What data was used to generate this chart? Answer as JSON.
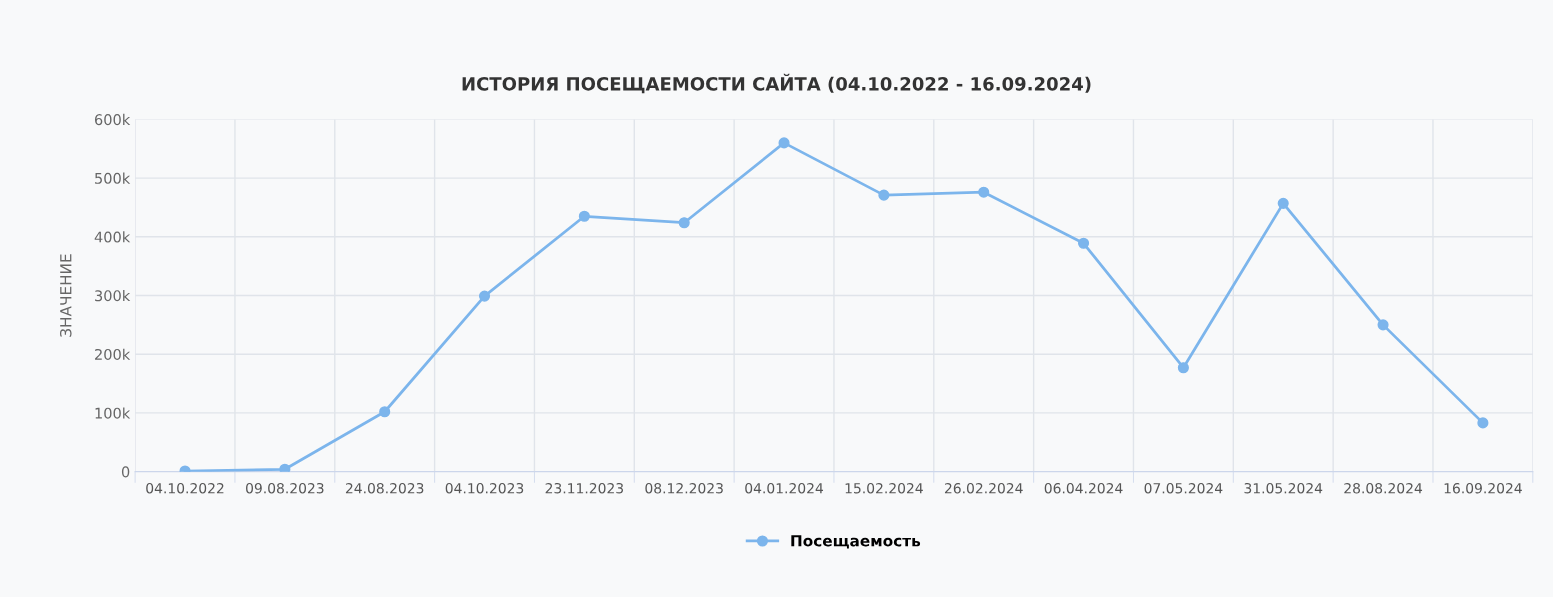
{
  "chart_data": {
    "type": "line",
    "title": "ИСТОРИЯ ПОСЕЩАЕМОСТИ САЙТА (04.10.2022 - 16.09.2024)",
    "ylabel": "ЗНАЧЕНИЕ",
    "categories": [
      "04.10.2022",
      "09.08.2023",
      "24.08.2023",
      "04.10.2023",
      "23.11.2023",
      "08.12.2023",
      "04.01.2024",
      "15.02.2024",
      "26.02.2024",
      "06.04.2024",
      "07.05.2024",
      "31.05.2024",
      "28.08.2024",
      "16.09.2024"
    ],
    "series": [
      {
        "name": "Посещаемость",
        "color": "#7cb5ec",
        "values": [
          1000,
          4000,
          102000,
          299000,
          435000,
          424000,
          560000,
          471000,
          476000,
          389000,
          177000,
          457000,
          250000,
          83000
        ]
      }
    ],
    "ylim": [
      0,
      600000
    ],
    "yticks": [
      {
        "value": 0,
        "label": "0"
      },
      {
        "value": 100000,
        "label": "100k"
      },
      {
        "value": 200000,
        "label": "200k"
      },
      {
        "value": 300000,
        "label": "300k"
      },
      {
        "value": 400000,
        "label": "400k"
      },
      {
        "value": 500000,
        "label": "500k"
      },
      {
        "value": 600000,
        "label": "600k"
      }
    ],
    "grid": true,
    "legend": "bottom",
    "marker": "circle",
    "line_style": "solid"
  }
}
